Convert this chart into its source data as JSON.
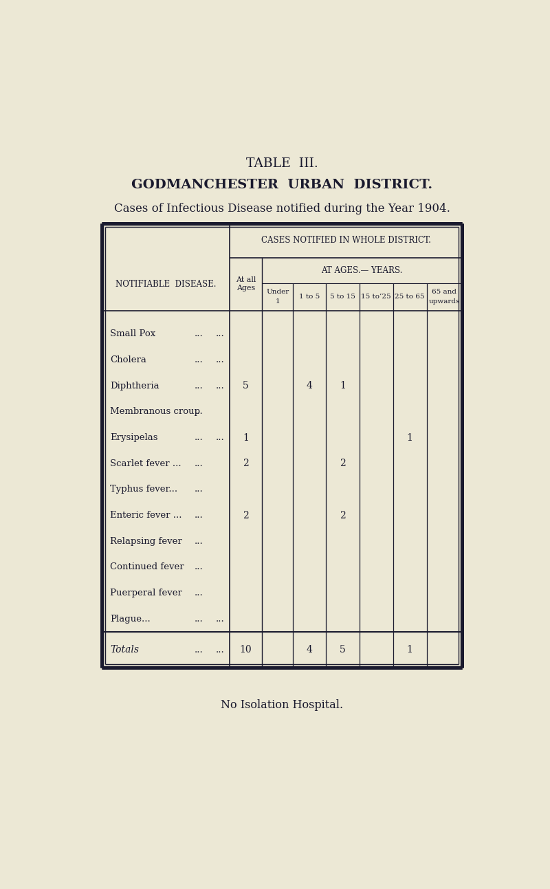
{
  "title1": "TABLE  III.",
  "title2": "GODMANCHESTER  URBAN  DISTRICT.",
  "title3": "Cases of Infectious Disease notified during the Year 1904.",
  "header1": "CASES NOTIFIED IN WHOLE DISTRICT.",
  "header2": "AT AGES.— YEARS.",
  "col_notifiable": "NOTIFIABLE  DISEASE.",
  "col_at_all_ages_line1": "At all",
  "col_at_all_ages_line2": "Ages",
  "col_under1_line1": "Under",
  "col_under1_line2": "1",
  "col_1to5": "1 to 5",
  "col_5to15": "5 to 15",
  "col_15to25": "15 to’25",
  "col_25to65": "25 to 65",
  "col_65up_line1": "65 and",
  "col_65up_line2": "upwards",
  "diseases": [
    [
      "Small Pox",
      "...",
      "...",
      "",
      "",
      "",
      "",
      "",
      "",
      ""
    ],
    [
      "Cholera",
      "...",
      "...",
      "",
      "",
      "",
      "",
      "",
      "",
      ""
    ],
    [
      "Diphtheria",
      "...",
      "...",
      "5",
      "",
      "4",
      "1",
      "",
      "",
      ""
    ],
    [
      "Membranous croup",
      "...",
      "",
      "",
      "",
      "",
      "",
      "",
      "",
      ""
    ],
    [
      "Erysipelas",
      "...",
      "...",
      "1",
      "",
      "",
      "",
      "",
      "1",
      ""
    ],
    [
      "Scarlet fever ...",
      "...",
      "",
      "2",
      "",
      "",
      "2",
      "",
      "",
      ""
    ],
    [
      "Typhus fever...",
      "...",
      "",
      "",
      "",
      "",
      "",
      "",
      "",
      ""
    ],
    [
      "Enteric fever ...",
      "...",
      "",
      "2",
      "",
      "",
      "2",
      "",
      "",
      ""
    ],
    [
      "Relapsing fever",
      "...",
      "",
      "",
      "",
      "",
      "",
      "",
      "",
      ""
    ],
    [
      "Continued fever",
      "...",
      "",
      "",
      "",
      "",
      "",
      "",
      "",
      ""
    ],
    [
      "Puerperal fever",
      "...",
      "",
      "",
      "",
      "",
      "",
      "",
      "",
      ""
    ],
    [
      "Plague...",
      "...",
      "...",
      "",
      "",
      "",
      "",
      "",
      "",
      ""
    ]
  ],
  "totals": [
    "10",
    "",
    "4",
    "5",
    "",
    "1",
    ""
  ],
  "footer": "No Isolation Hospital.",
  "bg_color": "#ece8d5",
  "text_color": "#1a1a2e",
  "line_color": "#1a1a2e"
}
